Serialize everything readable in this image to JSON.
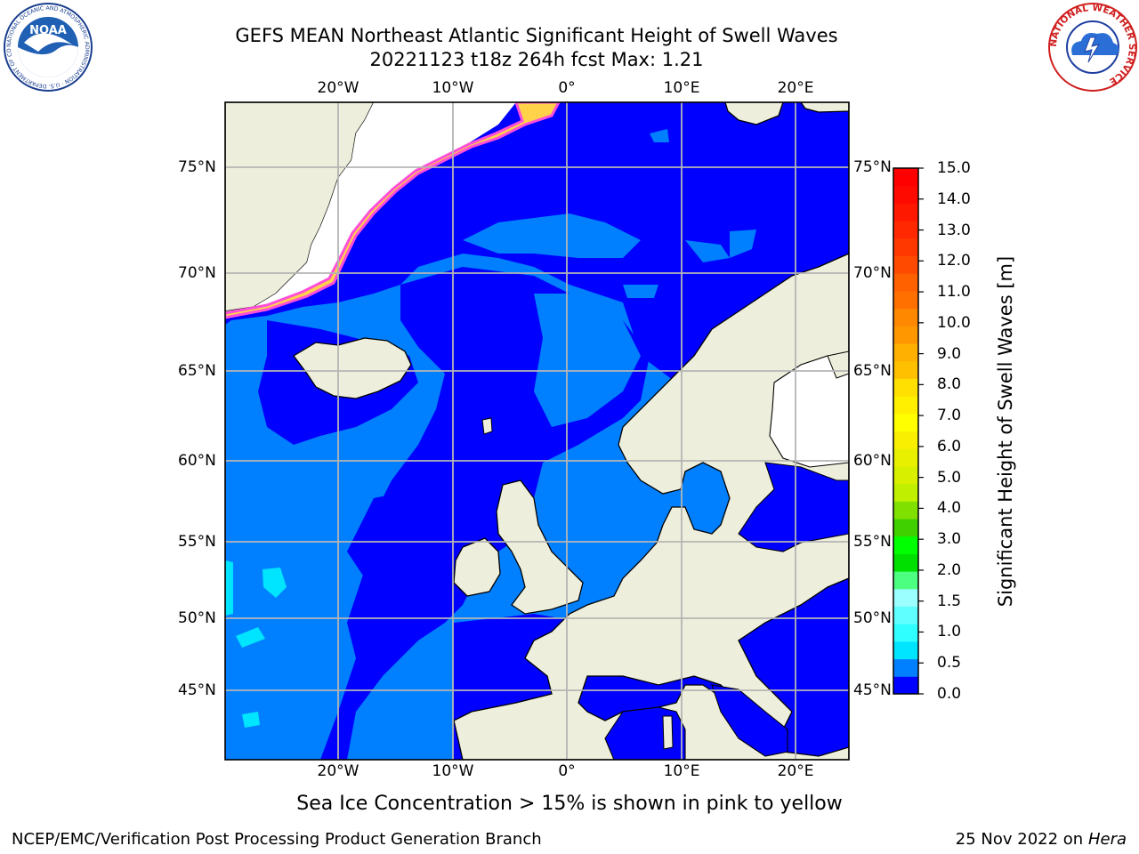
{
  "header": {
    "title_line1": "GEFS MEAN Northeast Atlantic Significant Height of Swell Waves",
    "title_line2": "20221123 t18z 264h fcst   Max: 1.21"
  },
  "logos": {
    "left": "NOAA",
    "left_ring_text": "NATIONAL OCEANIC AND ATMOSPHERIC ADMINISTRATION · U.S. DEPARTMENT OF COMMERCE",
    "right_ring_text": "NATIONAL WEATHER SERVICE"
  },
  "map": {
    "lon_labels": [
      "20°W",
      "10°W",
      "0°",
      "10°E",
      "20°E"
    ],
    "lat_labels": [
      "75°N",
      "70°N",
      "65°N",
      "60°N",
      "55°N",
      "50°N",
      "45°N"
    ],
    "colors": {
      "ocean_low": "#0000ff",
      "ocean_mid": "#0080ff",
      "ocean_cyan": "#00ffff",
      "land": "#eeeedc",
      "ice": "#ffffff",
      "grid": "#b4b4b4"
    }
  },
  "colorbar": {
    "label": "Significant Height of Swell Waves [m]",
    "ticks": [
      "15.0",
      "14.0",
      "13.0",
      "12.0",
      "11.0",
      "10.0",
      "9.0",
      "8.0",
      "7.0",
      "6.0",
      "5.0",
      "4.0",
      "3.0",
      "2.0",
      "1.5",
      "1.0",
      "0.5",
      "0.0"
    ],
    "levels": [
      0.0,
      0.5,
      1.0,
      1.5,
      2.0,
      2.5,
      3.0,
      3.5,
      4.0,
      4.5,
      5.0,
      5.5,
      6.0,
      6.5,
      7.0,
      7.5,
      8.0,
      8.5,
      9.0,
      9.5,
      10.0,
      10.5,
      11.0,
      11.5,
      12.0,
      12.5,
      13.0,
      13.5,
      14.0,
      14.5,
      15.0
    ],
    "colors": [
      "#0000ff",
      "#0080ff",
      "#00e5ff",
      "#30ffff",
      "#60ffff",
      "#9cffff",
      "#4cff80",
      "#00e000",
      "#00ff00",
      "#40d000",
      "#80e000",
      "#c0f000",
      "#d8f000",
      "#e8f000",
      "#f8f000",
      "#ffff00",
      "#fff000",
      "#ffe000",
      "#ffc000",
      "#ffb000",
      "#ff9800",
      "#ff8800",
      "#ff7000",
      "#ff6000",
      "#ff4a00",
      "#ff3800",
      "#ff2800",
      "#ff1800",
      "#ff0a00",
      "#ff0000"
    ]
  },
  "footer": {
    "note": "Sea Ice Concentration > 15% is shown in pink to yellow",
    "credit": "NCEP/EMC/Verification Post Processing Product Generation Branch",
    "date": "25 Nov 2022",
    "on": "on",
    "machine": "Hera"
  }
}
